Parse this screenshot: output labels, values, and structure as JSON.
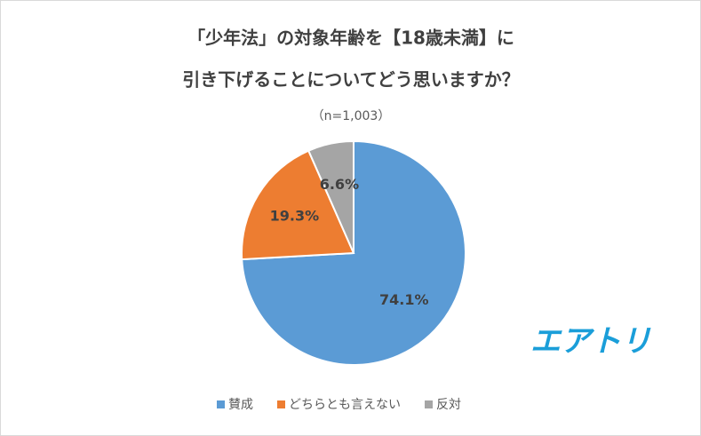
{
  "chart_data": {
    "type": "pie",
    "title": [
      "「少年法」の対象年齢を【18歳未満】に",
      "引き下げることについてどう思いますか？"
    ],
    "subtitle": "（n=1,003）",
    "categories": [
      "賛成",
      "どちらとも言えない",
      "反対"
    ],
    "values": [
      74.1,
      19.3,
      6.6
    ],
    "value_labels": [
      "74.1%",
      "19.3%",
      "6.6%"
    ],
    "colors": [
      "#5b9bd5",
      "#ed7d31",
      "#a5a5a5"
    ],
    "legend": "bottom",
    "logo": "エアトリ"
  }
}
